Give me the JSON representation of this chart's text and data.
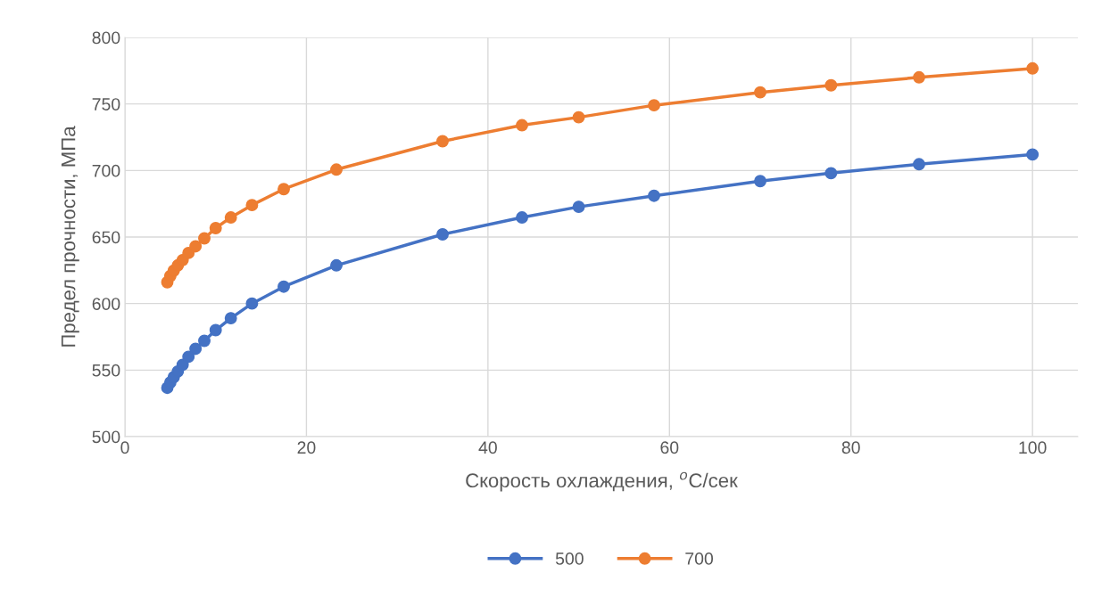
{
  "chart_data": {
    "type": "line",
    "xlabel": "Скорость охлаждения, $^{o}$C/сек",
    "ylabel": "Предел прочности, МПа",
    "x": [
      4.67,
      5.0,
      5.38,
      5.83,
      6.36,
      7.0,
      7.78,
      8.75,
      10.0,
      11.67,
      14.0,
      17.5,
      23.3,
      35.0,
      43.75,
      50.0,
      58.3,
      70.0,
      77.8,
      87.5,
      100.0
    ],
    "series": [
      {
        "name": "500",
        "color": "#4472c4",
        "values": [
          536.7,
          540.7,
          544.7,
          549,
          554,
          560,
          566,
          572,
          580,
          589,
          600,
          612.7,
          628.7,
          652,
          664.7,
          672.7,
          681,
          692,
          698,
          704.7,
          712
        ]
      },
      {
        "name": "700",
        "color": "#ed7d31",
        "values": [
          616,
          620.7,
          624.7,
          628.7,
          632.7,
          638,
          643,
          649,
          656.7,
          664.7,
          674,
          686,
          700.7,
          722,
          734,
          740,
          749,
          758.7,
          764,
          770,
          776.7
        ]
      }
    ],
    "xlim": [
      0,
      105
    ],
    "xticks": [
      0,
      20,
      40,
      60,
      80,
      100
    ],
    "ylim": [
      500,
      800
    ],
    "yticks": [
      500,
      550,
      600,
      650,
      700,
      750,
      800
    ],
    "grid": true,
    "legend": "bottom",
    "marker": "circle",
    "line_style": "solid"
  }
}
